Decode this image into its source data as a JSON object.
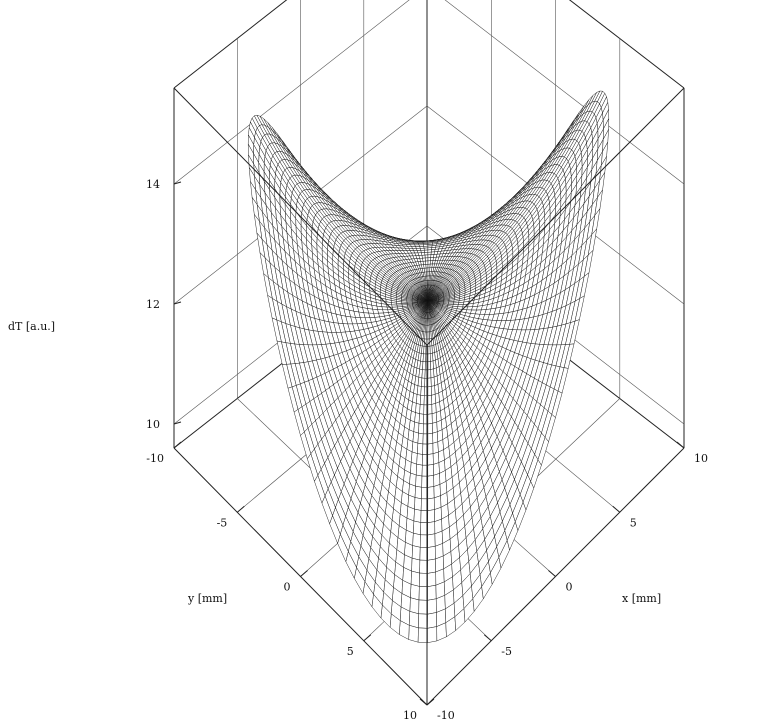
{
  "chart_data": {
    "type": "surface-3d",
    "surface": "saddle",
    "zlabel": "dT [a.u.]",
    "xlabel": "x [mm]",
    "ylabel": "y [mm]",
    "zlim": [
      9.6,
      15.6
    ],
    "xlim": [
      -10,
      10
    ],
    "ylim": [
      -10,
      10
    ],
    "z_ticks": [
      {
        "value": 10,
        "label": "10"
      },
      {
        "value": 12,
        "label": "12"
      },
      {
        "value": 14,
        "label": "14"
      }
    ],
    "y_ticks": [
      {
        "value": -10,
        "label": "-10"
      },
      {
        "value": -5,
        "label": "-5"
      },
      {
        "value": 0,
        "label": "0"
      },
      {
        "value": 5,
        "label": "5"
      },
      {
        "value": 10,
        "label": "10"
      }
    ],
    "x_ticks": [
      {
        "value": -10,
        "label": "-10"
      },
      {
        "value": -5,
        "label": "-5"
      },
      {
        "value": 0,
        "label": "0"
      },
      {
        "value": 5,
        "label": "5"
      },
      {
        "value": 10,
        "label": "10"
      }
    ],
    "grid": true,
    "colors": {
      "line": "#111111",
      "face": "#ffffff",
      "background": "#ffffff"
    }
  }
}
